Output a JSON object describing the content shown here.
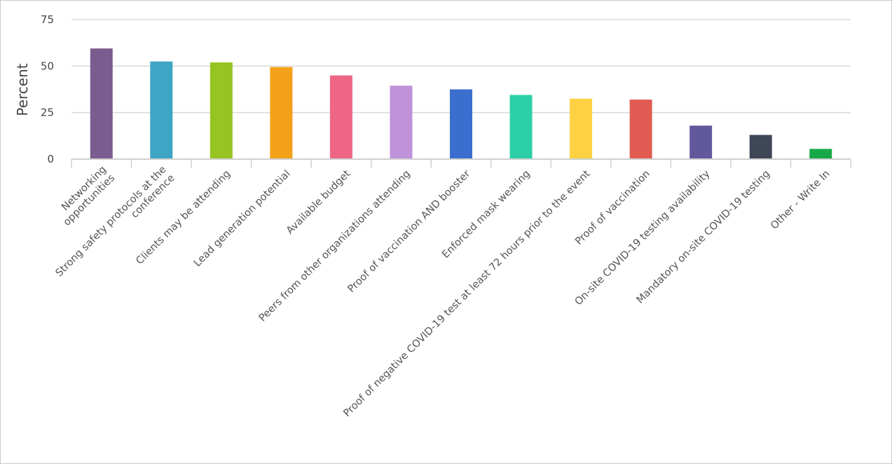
{
  "chart_data": {
    "type": "bar",
    "title": "",
    "ylabel": "Percent",
    "xlabel": "",
    "ylim": [
      0,
      75
    ],
    "yticks": [
      0,
      25,
      50,
      75
    ],
    "grid": true,
    "legend": "none",
    "categories": [
      [
        "Networking",
        "opportunities"
      ],
      [
        "Strong safety protocols at the",
        "conference"
      ],
      [
        "Clients may be attending"
      ],
      [
        "Lead generation potential"
      ],
      [
        "Available budget"
      ],
      [
        "Peers from other organizations attending"
      ],
      [
        "Proof of vaccination AND booster"
      ],
      [
        "Enforced mask wearing"
      ],
      [
        "Proof of negative COVID-19 test at least 72 hours prior to the event"
      ],
      [
        "Proof of vaccination"
      ],
      [
        "On-site COVID-19 testing availability"
      ],
      [
        "Mandatory on-site COVID-19 testing"
      ],
      [
        "Other - Write In"
      ]
    ],
    "values": [
      59.5,
      52.5,
      52,
      49.5,
      45,
      39.5,
      37.5,
      34.5,
      32.5,
      32,
      18,
      13,
      5.5
    ],
    "colors": [
      "#7b5c8e",
      "#3ea5c4",
      "#95c423",
      "#f4a11a",
      "#ef6685",
      "#bf92d9",
      "#3c6ecf",
      "#2dcfa6",
      "#fdd141",
      "#e05c52",
      "#62599d",
      "#3e4658",
      "#17a84a"
    ]
  }
}
